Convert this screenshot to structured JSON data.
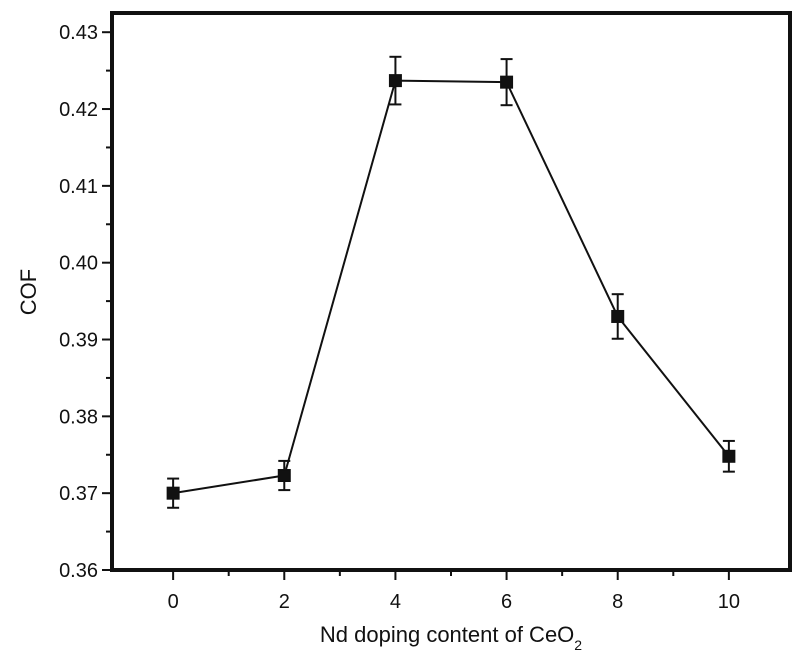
{
  "chart_data": {
    "type": "line",
    "title": "",
    "xlabel_main": "Nd doping content of CeO",
    "xlabel_sub": "2",
    "ylabel": "COF",
    "x_ticks": [
      "0",
      "2",
      "4",
      "6",
      "8",
      "10"
    ],
    "y_ticks": [
      "0.36",
      "0.37",
      "0.38",
      "0.39",
      "0.40",
      "0.41",
      "0.42",
      "0.43"
    ],
    "xlim": [
      -1.1,
      11.1
    ],
    "ylim": [
      0.36,
      0.4325
    ],
    "grid": false,
    "legend": "none",
    "series": [
      {
        "x": [
          0,
          2,
          4,
          6,
          8,
          10
        ],
        "y": [
          0.37,
          0.3723,
          0.4237,
          0.4235,
          0.393,
          0.3748
        ],
        "error": [
          0.0019,
          0.0019,
          0.0031,
          0.003,
          0.0029,
          0.002
        ],
        "marker": "square",
        "color": "#111111"
      }
    ]
  }
}
